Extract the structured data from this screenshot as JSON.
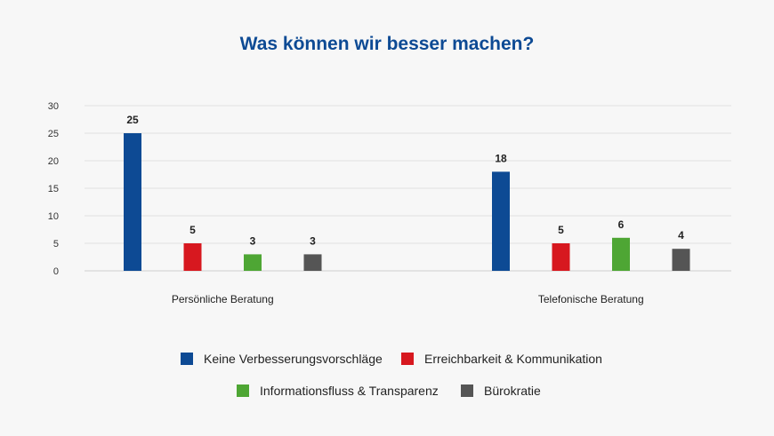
{
  "chart_data": {
    "type": "bar",
    "title": "Was können wir besser machen?",
    "xlabel": "",
    "ylabel": "",
    "categories": [
      "Persönliche Beratung",
      "Telefonische Beratung"
    ],
    "series": [
      {
        "name": "Keine Verbesserungsvorschläge",
        "color": "#0d4a94",
        "values": [
          25,
          18
        ]
      },
      {
        "name": "Erreichbarkeit & Kommunikation",
        "color": "#d7181f",
        "values": [
          5,
          5
        ]
      },
      {
        "name": "Informationsfluss & Transparenz",
        "color": "#4ea634",
        "values": [
          3,
          6
        ]
      },
      {
        "name": "Bürokratie",
        "color": "#555555",
        "values": [
          3,
          4
        ]
      }
    ],
    "ylim": [
      0,
      30
    ],
    "yticks": [
      "0",
      "5",
      "10",
      "15",
      "20",
      "25",
      "30"
    ],
    "grid": true,
    "legend_position": "bottom"
  }
}
